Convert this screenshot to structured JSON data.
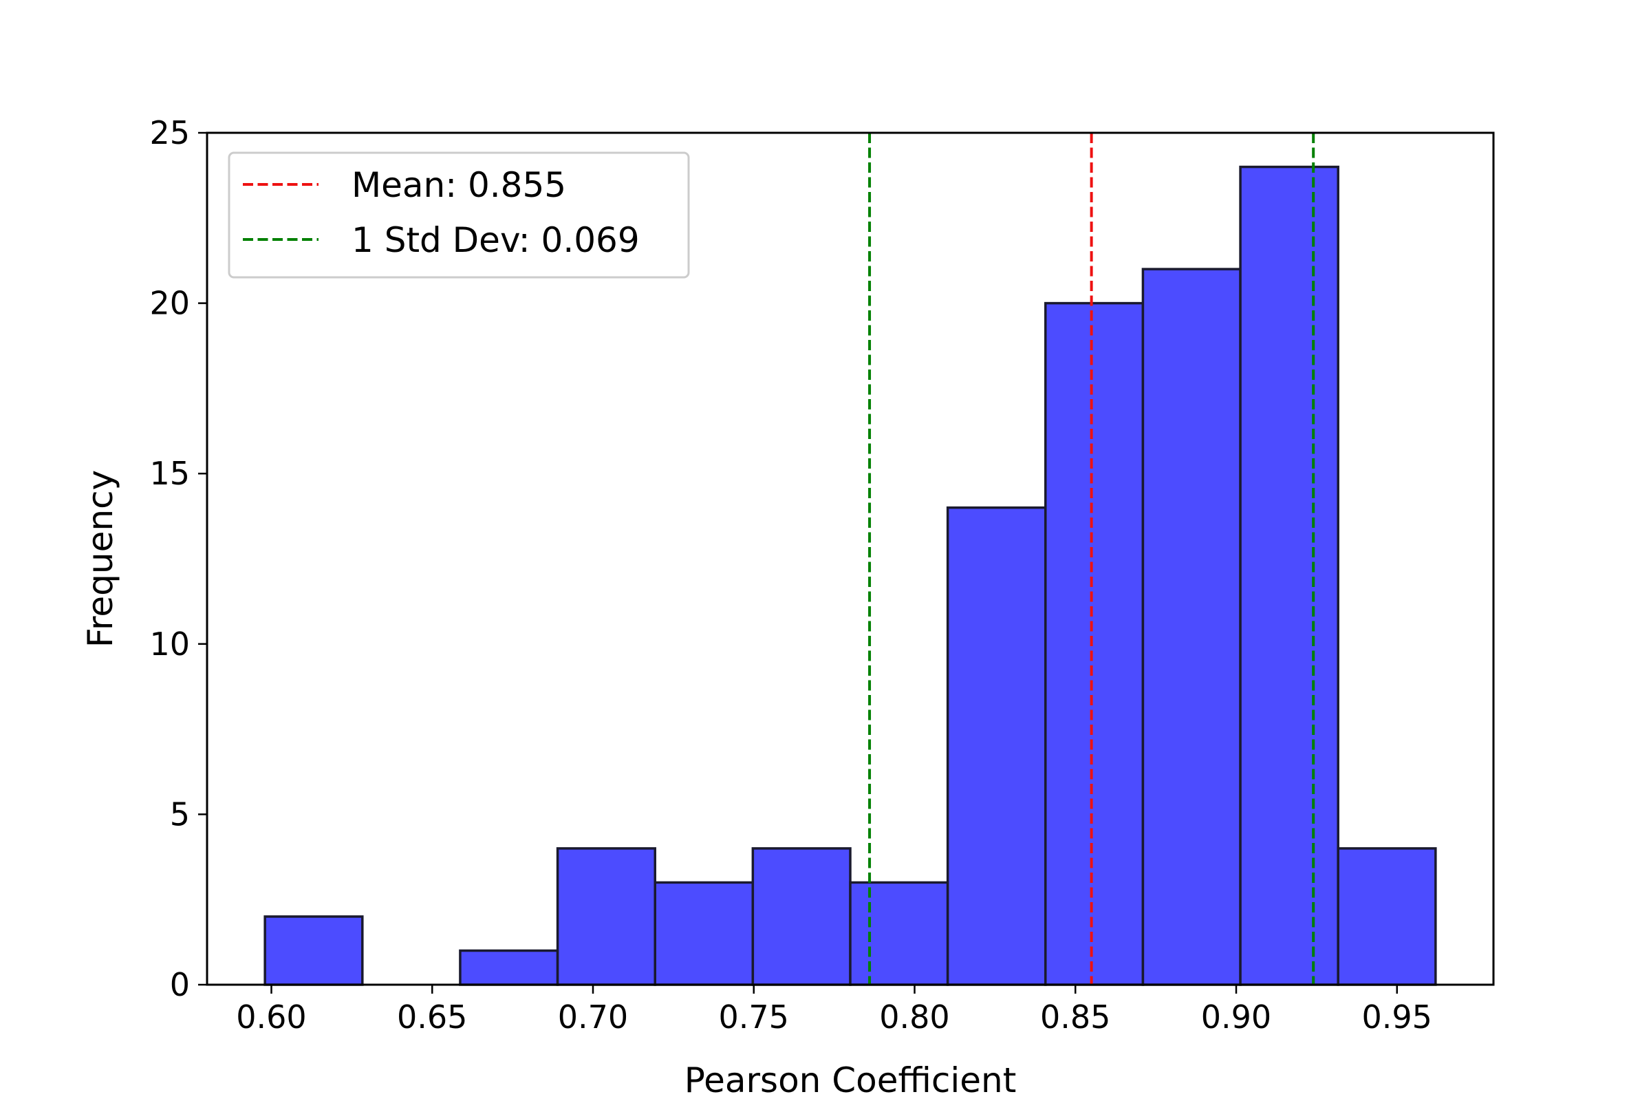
{
  "chart_data": {
    "type": "bar",
    "bins": [
      {
        "x0": 0.598,
        "x1": 0.6283,
        "count": 2
      },
      {
        "x0": 0.6283,
        "x1": 0.6587,
        "count": 0
      },
      {
        "x0": 0.6587,
        "x1": 0.689,
        "count": 1
      },
      {
        "x0": 0.689,
        "x1": 0.7193,
        "count": 4
      },
      {
        "x0": 0.7193,
        "x1": 0.7497,
        "count": 3
      },
      {
        "x0": 0.7497,
        "x1": 0.78,
        "count": 4
      },
      {
        "x0": 0.78,
        "x1": 0.8103,
        "count": 3
      },
      {
        "x0": 0.8103,
        "x1": 0.8407,
        "count": 14
      },
      {
        "x0": 0.8407,
        "x1": 0.871,
        "count": 20
      },
      {
        "x0": 0.871,
        "x1": 0.9013,
        "count": 21
      },
      {
        "x0": 0.9013,
        "x1": 0.9317,
        "count": 24
      },
      {
        "x0": 0.9317,
        "x1": 0.962,
        "count": 4
      }
    ],
    "reference_lines": [
      {
        "x": 0.855,
        "color": "#ee1111",
        "label": "Mean: 0.855",
        "legend": true
      },
      {
        "x": 0.786,
        "color": "#008000",
        "label": "1 Std Dev: 0.069",
        "legend": true
      },
      {
        "x": 0.924,
        "color": "#008000",
        "label": "1 Std Dev: 0.069",
        "legend": false
      }
    ],
    "xlabel": "Pearson Coefficient",
    "ylabel": "Frequency",
    "xlim": [
      0.58,
      0.98
    ],
    "ylim": [
      0,
      25
    ],
    "xticks": [
      0.6,
      0.65,
      0.7,
      0.75,
      0.8,
      0.85,
      0.9,
      0.95
    ],
    "xtick_labels": [
      "0.60",
      "0.65",
      "0.70",
      "0.75",
      "0.80",
      "0.85",
      "0.90",
      "0.95"
    ],
    "yticks": [
      0,
      5,
      10,
      15,
      20,
      25
    ],
    "ytick_labels": [
      "0",
      "5",
      "10",
      "15",
      "20",
      "25"
    ],
    "bar_color": "#4c4cff",
    "bar_edge_color": "#1a1a2e",
    "grid": false,
    "legend_position": "top-left"
  }
}
